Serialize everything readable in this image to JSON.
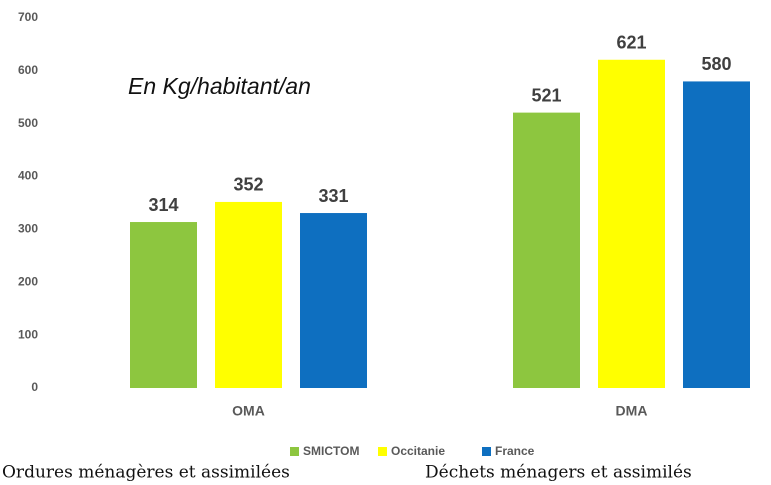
{
  "chart_data": {
    "type": "bar",
    "annotation": "En Kg/habitant/an",
    "categories": [
      "OMA",
      "DMA"
    ],
    "series": [
      {
        "name": "SMICTOM",
        "color": "#8dc63f",
        "values": [
          314,
          521
        ]
      },
      {
        "name": "Occitanie",
        "color": "#ffff00",
        "values": [
          352,
          621
        ]
      },
      {
        "name": "France",
        "color": "#0e6fc0",
        "values": [
          331,
          580
        ]
      }
    ],
    "ylim": [
      0,
      700
    ],
    "yticks": [
      0,
      100,
      200,
      300,
      400,
      500,
      600,
      700
    ],
    "grid": false,
    "legend": "bottom",
    "captions": [
      "Ordures ménagères et assimilées",
      "Déchets ménagers et assimilés"
    ]
  }
}
